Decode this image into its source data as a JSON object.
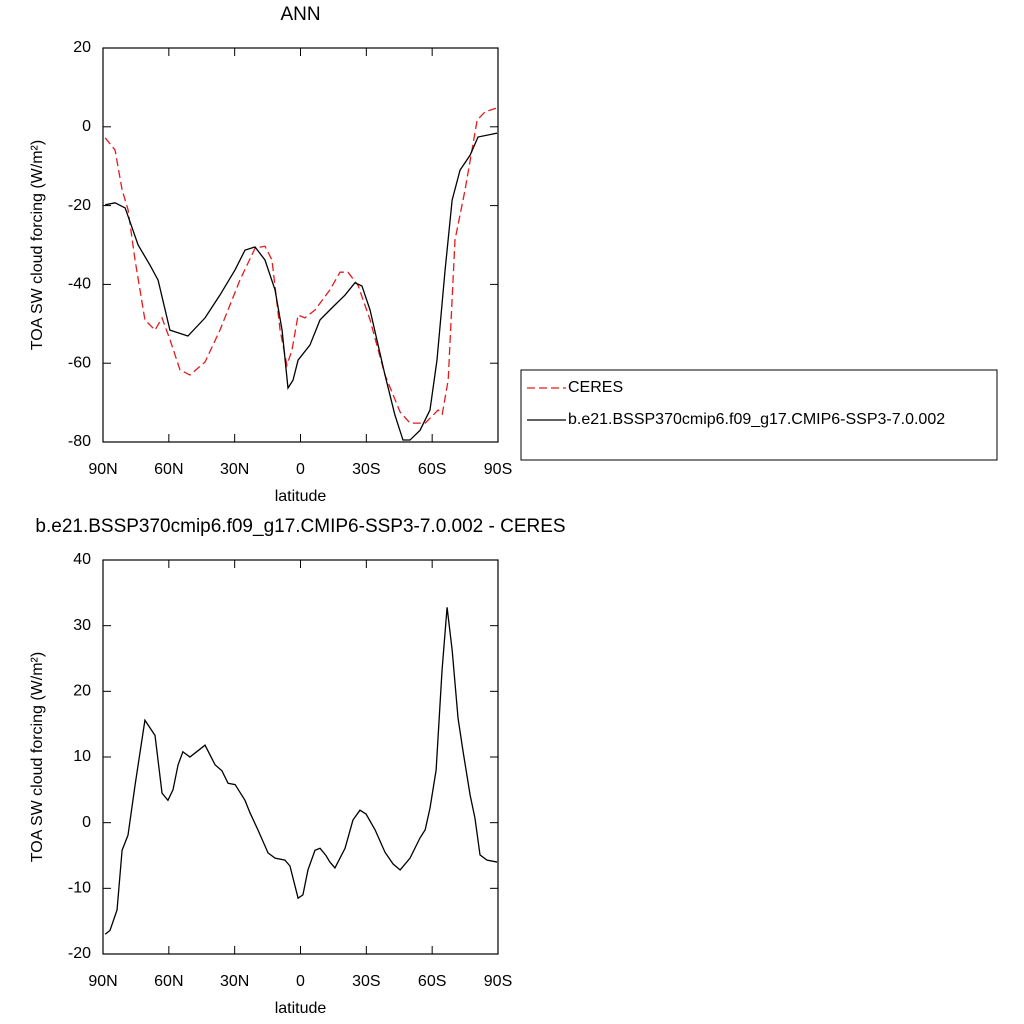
{
  "chart_data": [
    {
      "type": "line",
      "title": "ANN",
      "x_label": "latitude",
      "y_label": "TOA SW cloud forcing (W/m²)",
      "xlim": [
        90,
        -90
      ],
      "ylim": [
        -80,
        20
      ],
      "xticks": [
        {
          "value": 90,
          "label": "90N"
        },
        {
          "value": 60,
          "label": "60N"
        },
        {
          "value": 30,
          "label": "30N"
        },
        0,
        {
          "value": -30,
          "label": "30S"
        },
        {
          "value": -60,
          "label": "60S"
        },
        {
          "value": -90,
          "label": "90S"
        }
      ],
      "yticks": [
        -80,
        -60,
        -40,
        -20,
        0,
        20
      ],
      "legend": "outside-right",
      "series": [
        {
          "name": "CERES",
          "color": "#e41a1c",
          "dashed": true,
          "x": [
            89,
            84.5,
            81.3,
            78.6,
            75.4,
            70.9,
            66.3,
            63.1,
            59.5,
            54.9,
            50.4,
            43.5,
            36.7,
            27.6,
            20.7,
            16.2,
            13,
            9.3,
            6.2,
            3.9,
            1.1,
            -2,
            -6.6,
            -13.4,
            -18,
            -21.6,
            -26.2,
            -31.7,
            -38.5,
            -45.4,
            -49.9,
            -56.8,
            -62.7,
            -64.6,
            -67.3,
            -70.4,
            -75,
            -80.5,
            -84.1,
            -89.6
          ],
          "values": [
            -2.8,
            -5.9,
            -16,
            -21,
            -33.8,
            -49,
            -51.6,
            -48.5,
            -54,
            -61.7,
            -63,
            -59.7,
            -51.6,
            -38.9,
            -30.8,
            -30.3,
            -33.8,
            -51.6,
            -60.5,
            -56.7,
            -47.8,
            -48.5,
            -46.5,
            -41.4,
            -36.9,
            -36.9,
            -40.2,
            -49,
            -63,
            -72.4,
            -75.2,
            -75.2,
            -71.9,
            -72.9,
            -64.3,
            -28.7,
            -16,
            1.7,
            3.8,
            4.8
          ]
        },
        {
          "name": "b.e21.BSSP370cmip6.f09_g17.CMIP6-SSP3-7.0.002",
          "color": "#000000",
          "dashed": false,
          "x": [
            89,
            84.5,
            79.9,
            74,
            68.6,
            64.9,
            59.5,
            51.3,
            43.5,
            36.7,
            29.8,
            25.3,
            20.7,
            16.2,
            11.6,
            8.4,
            5.7,
            3.4,
            1.1,
            -4.3,
            -8.9,
            -14.8,
            -20.3,
            -24.8,
            -28,
            -31.7,
            -38.5,
            -43,
            -46.7,
            -49.9,
            -54.5,
            -59,
            -62.2,
            -65.9,
            -69.1,
            -72.7,
            -77.3,
            -80.9,
            -89.6
          ],
          "values": [
            -19.8,
            -19.3,
            -20.6,
            -30,
            -35.1,
            -38.9,
            -51.6,
            -53.1,
            -48.5,
            -42.7,
            -36.3,
            -31.3,
            -30.5,
            -33.8,
            -41.4,
            -51.6,
            -66.3,
            -64.3,
            -59.2,
            -55.4,
            -49,
            -45.7,
            -42.7,
            -39.6,
            -40.4,
            -46.5,
            -63,
            -73.1,
            -79.5,
            -79.5,
            -77,
            -71.9,
            -59.2,
            -36.3,
            -18.6,
            -11,
            -7.2,
            -2.6,
            -1.6
          ]
        }
      ]
    },
    {
      "type": "line",
      "title": "b.e21.BSSP370cmip6.f09_g17.CMIP6-SSP3-7.0.002 - CERES",
      "x_label": "latitude",
      "y_label": "TOA SW cloud forcing (W/m²)",
      "xlim": [
        90,
        -90
      ],
      "ylim": [
        -20,
        40
      ],
      "xticks": [
        {
          "value": 90,
          "label": "90N"
        },
        {
          "value": 60,
          "label": "60N"
        },
        {
          "value": 30,
          "label": "30N"
        },
        0,
        {
          "value": -30,
          "label": "30S"
        },
        {
          "value": -60,
          "label": "60S"
        },
        {
          "value": -90,
          "label": "90S"
        }
      ],
      "yticks": [
        -20,
        -10,
        0,
        10,
        20,
        30,
        40
      ],
      "series": [
        {
          "color": "#000000",
          "dashed": false,
          "x": [
            89,
            86.8,
            83.6,
            81.3,
            78.6,
            75.4,
            70.9,
            66.3,
            63.1,
            60.4,
            58.1,
            55.8,
            53.6,
            50.4,
            43.5,
            38.9,
            35.8,
            33,
            29.8,
            25.3,
            23,
            19.4,
            14.8,
            11.6,
            7.1,
            4.8,
            1.1,
            -1.1,
            -3.4,
            -6.6,
            -8.9,
            -11.6,
            -13.4,
            -15.7,
            -20.3,
            -23.9,
            -27.1,
            -29.9,
            -34,
            -38.5,
            -42.2,
            -45.4,
            -49.9,
            -54.5,
            -56.8,
            -59,
            -61.8,
            -64.5,
            -66.8,
            -69.1,
            -71.8,
            -74.1,
            -77.3,
            -79.5,
            -81.8,
            -85,
            -89.6
          ],
          "values": [
            -17,
            -16.4,
            -13.3,
            -4.2,
            -1.9,
            5.7,
            15.6,
            13.3,
            4.5,
            3.4,
            5,
            8.8,
            10.8,
            10,
            11.8,
            8.8,
            7.9,
            6,
            5.8,
            3.4,
            1.5,
            -1.1,
            -4.6,
            -5.4,
            -5.7,
            -6.6,
            -11.5,
            -11,
            -7.2,
            -4.2,
            -3.9,
            -5,
            -6,
            -6.9,
            -3.9,
            0.4,
            1.9,
            1.3,
            -1.1,
            -4.5,
            -6.3,
            -7.2,
            -5.4,
            -2.3,
            -1.1,
            2.2,
            8,
            23.2,
            32.8,
            26.3,
            15.9,
            10.8,
            4.2,
            0.7,
            -4.9,
            -5.7,
            -6
          ]
        }
      ]
    }
  ]
}
